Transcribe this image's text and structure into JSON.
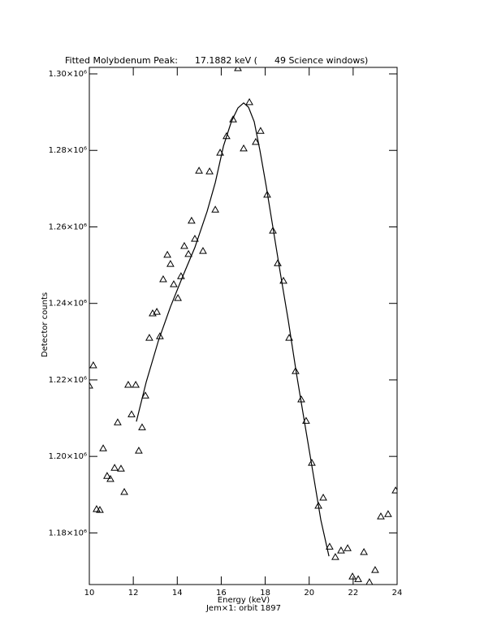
{
  "chart_data": {
    "type": "scatter",
    "title": "Fitted Molybdenum Peak:      17.1882 keV (      49 Science windows)",
    "x_label": "Energy (keV)",
    "y_label": "Detector counts",
    "subtitle": "Jem×1: orbit 1897",
    "xlim": [
      10,
      24
    ],
    "xticks": [
      10,
      12,
      14,
      16,
      18,
      20,
      22,
      24
    ],
    "ylim": [
      1166500,
      1301700
    ],
    "yticks": [
      {
        "value": 1180000,
        "label": "1.18×10⁶"
      },
      {
        "value": 1200000,
        "label": "1.20×10⁶"
      },
      {
        "value": 1220000,
        "label": "1.22×10⁶"
      },
      {
        "value": 1240000,
        "label": "1.24×10⁶"
      },
      {
        "value": 1260000,
        "label": "1.26×10⁶"
      },
      {
        "value": 1280000,
        "label": "1.28×10⁶"
      },
      {
        "value": 1300000,
        "label": "1.30×10⁶"
      }
    ],
    "grid": false,
    "series": [
      {
        "style": "triangle",
        "color": "#000000",
        "x": [
          10.0,
          10.18,
          10.33,
          10.48,
          10.63,
          10.81,
          10.96,
          11.15,
          11.29,
          11.44,
          11.59,
          11.77,
          11.92,
          12.11,
          12.25,
          12.4,
          12.55,
          12.73,
          12.88,
          13.07,
          13.21,
          13.36,
          13.55,
          13.69,
          13.84,
          14.03,
          14.17,
          14.32,
          14.51,
          14.65,
          14.8,
          14.99,
          15.17,
          15.47,
          15.73,
          15.95,
          16.24,
          16.54,
          16.76,
          17.02,
          17.28,
          17.57,
          17.79,
          18.09,
          18.35,
          18.57,
          18.83,
          19.09,
          19.38,
          19.64,
          19.86,
          20.12,
          20.42,
          20.64,
          20.93,
          21.19,
          21.45,
          21.75,
          21.97,
          22.23,
          22.49,
          22.74,
          23.0,
          23.26,
          23.59,
          23.93
        ],
        "values": [
          1218500,
          1223800,
          1186200,
          1186000,
          1202100,
          1194900,
          1194100,
          1197000,
          1208900,
          1196800,
          1190700,
          1218700,
          1211000,
          1218700,
          1201500,
          1207600,
          1215900,
          1231000,
          1237400,
          1237800,
          1231400,
          1246300,
          1252700,
          1250300,
          1245000,
          1241400,
          1247100,
          1255000,
          1252900,
          1261600,
          1256900,
          1274700,
          1253700,
          1274500,
          1264500,
          1279400,
          1283700,
          1288100,
          1301500,
          1280500,
          1292600,
          1282200,
          1285100,
          1268400,
          1259000,
          1250500,
          1245900,
          1231000,
          1222300,
          1214900,
          1209300,
          1198300,
          1187100,
          1189200,
          1176400,
          1173700,
          1175400,
          1176000,
          1168600,
          1167900,
          1175000,
          1167100,
          1170300,
          1184300,
          1184900,
          1191100
        ]
      },
      {
        "style": "line",
        "color": "#000000",
        "x": [
          12.14,
          12.59,
          13.14,
          13.69,
          14.25,
          14.8,
          15.36,
          15.73,
          16.1,
          16.46,
          16.76,
          17.02,
          17.24,
          17.5,
          17.76,
          18.05,
          18.35,
          18.68,
          19.05,
          19.42,
          19.79,
          20.16,
          20.53,
          20.9
        ],
        "values": [
          1209100,
          1219500,
          1230200,
          1239100,
          1247100,
          1254600,
          1264100,
          1271600,
          1281100,
          1287500,
          1291100,
          1292400,
          1291300,
          1287500,
          1280000,
          1270500,
          1259900,
          1248200,
          1235500,
          1221700,
          1208900,
          1196200,
          1183400,
          1173900
        ]
      }
    ]
  }
}
